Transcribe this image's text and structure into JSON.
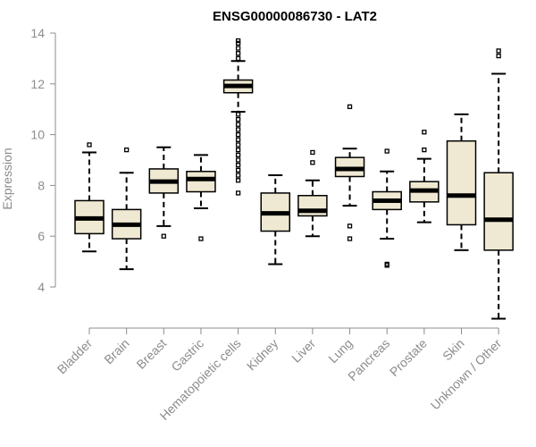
{
  "chart_data": {
    "type": "boxplot",
    "title": "ENSG00000086730 - LAT2",
    "ylabel": "Expression",
    "xlabel": "",
    "ylim": [
      3.0,
      14.2
    ],
    "yticks": [
      4,
      6,
      8,
      10,
      12,
      14
    ],
    "box_fill": "#efe9d3",
    "categories": [
      "Bladder",
      "Brain",
      "Breast",
      "Gastric",
      "Hematopoietic cells",
      "Kidney",
      "Liver",
      "Lung",
      "Pancreas",
      "Prostate",
      "Skin",
      "Unknown / Other"
    ],
    "series": [
      {
        "name": "Bladder",
        "whisker_low": 5.4,
        "q1": 6.1,
        "median": 6.7,
        "q3": 7.4,
        "whisker_high": 9.3,
        "outliers": [
          9.6
        ]
      },
      {
        "name": "Brain",
        "whisker_low": 4.7,
        "q1": 5.9,
        "median": 6.45,
        "q3": 7.05,
        "whisker_high": 8.5,
        "outliers": [
          9.4
        ]
      },
      {
        "name": "Breast",
        "whisker_low": 6.4,
        "q1": 7.7,
        "median": 8.15,
        "q3": 8.65,
        "whisker_high": 9.5,
        "outliers": [
          6.0
        ]
      },
      {
        "name": "Gastric",
        "whisker_low": 7.1,
        "q1": 7.75,
        "median": 8.25,
        "q3": 8.55,
        "whisker_high": 9.2,
        "outliers": [
          5.9
        ]
      },
      {
        "name": "Hematopoietic cells",
        "whisker_low": 10.9,
        "q1": 11.65,
        "median": 11.92,
        "q3": 12.15,
        "whisker_high": 12.9,
        "outliers": [
          7.7,
          8.2,
          8.4,
          8.6,
          8.8,
          9.0,
          9.2,
          9.4,
          9.6,
          9.8,
          10.0,
          10.2,
          10.4,
          10.6,
          10.8,
          13.0,
          13.2,
          13.4,
          13.6,
          13.7
        ]
      },
      {
        "name": "Kidney",
        "whisker_low": 4.9,
        "q1": 6.2,
        "median": 6.9,
        "q3": 7.7,
        "whisker_high": 8.4,
        "outliers": []
      },
      {
        "name": "Liver",
        "whisker_low": 6.0,
        "q1": 6.8,
        "median": 7.0,
        "q3": 7.6,
        "whisker_high": 8.2,
        "outliers": [
          8.9,
          9.3
        ]
      },
      {
        "name": "Lung",
        "whisker_low": 7.2,
        "q1": 8.35,
        "median": 8.65,
        "q3": 9.1,
        "whisker_high": 9.45,
        "outliers": [
          11.1,
          6.4,
          5.9
        ]
      },
      {
        "name": "Pancreas",
        "whisker_low": 5.9,
        "q1": 7.05,
        "median": 7.4,
        "q3": 7.75,
        "whisker_high": 8.55,
        "outliers": [
          9.35,
          4.9,
          4.85
        ]
      },
      {
        "name": "Prostate",
        "whisker_low": 6.55,
        "q1": 7.35,
        "median": 7.8,
        "q3": 8.15,
        "whisker_high": 9.05,
        "outliers": [
          9.4,
          10.1
        ]
      },
      {
        "name": "Skin",
        "whisker_low": 5.45,
        "q1": 6.45,
        "median": 7.6,
        "q3": 9.75,
        "whisker_high": 10.8,
        "outliers": []
      },
      {
        "name": "Unknown / Other",
        "whisker_low": 2.75,
        "q1": 5.45,
        "median": 6.65,
        "q3": 8.5,
        "whisker_high": 12.4,
        "outliers": [
          13.1,
          13.3
        ]
      }
    ]
  }
}
